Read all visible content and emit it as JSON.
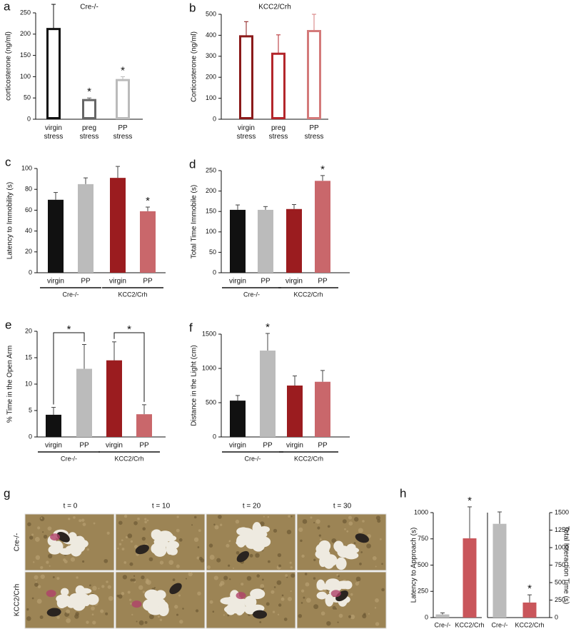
{
  "chart_data": [
    {
      "type": "bar",
      "panel": "a",
      "title": "Cre-/-",
      "ylabel": "corticosterone (ng/ml)",
      "categories": [
        "virgin stress",
        "preg stress",
        "PP stress"
      ],
      "values": [
        212,
        45,
        92
      ],
      "errors": [
        58,
        5,
        8
      ],
      "colors": [
        "#111111",
        "#666666",
        "#bbbbbb"
      ],
      "filled": false,
      "ylim": [
        0,
        250
      ],
      "yticks": [
        0,
        50,
        100,
        150,
        200,
        250
      ],
      "annotations": [
        null,
        "*",
        "*"
      ]
    },
    {
      "type": "bar",
      "panel": "b",
      "title": "KCC2/Crh",
      "ylabel": "Corticosterone (ng/ml)",
      "categories": [
        "virgin stress",
        "preg stress",
        "PP stress"
      ],
      "values": [
        395,
        312,
        420
      ],
      "errors": [
        70,
        90,
        80
      ],
      "colors": [
        "#8b1a1a",
        "#b3262b",
        "#d47a7a"
      ],
      "filled": false,
      "ylim": [
        0,
        500
      ],
      "yticks": [
        0,
        100,
        200,
        300,
        400,
        500
      ]
    },
    {
      "type": "bar",
      "panel": "c",
      "ylabel": "Latency to Immobility (s)",
      "categories": [
        "virgin",
        "PP",
        "virgin",
        "PP"
      ],
      "groups": [
        "Cre-/-",
        "KCC2/Crh"
      ],
      "values": [
        70,
        85,
        91,
        59
      ],
      "errors": [
        7,
        6,
        11,
        4
      ],
      "colors": [
        "#111111",
        "#bbbbbb",
        "#9b1c1f",
        "#c9676b"
      ],
      "filled": true,
      "ylim": [
        0,
        100
      ],
      "yticks": [
        0,
        20,
        40,
        60,
        80,
        100
      ],
      "annotations": [
        null,
        null,
        null,
        "*"
      ]
    },
    {
      "type": "bar",
      "panel": "d",
      "ylabel": "Total Time Immobile (s)",
      "categories": [
        "virgin",
        "PP",
        "virgin",
        "PP"
      ],
      "groups": [
        "Cre-/-",
        "KCC2/Crh"
      ],
      "values": [
        154,
        154,
        156,
        225
      ],
      "errors": [
        12,
        8,
        11,
        13
      ],
      "colors": [
        "#111111",
        "#bbbbbb",
        "#9b1c1f",
        "#c9676b"
      ],
      "filled": true,
      "ylim": [
        0,
        250
      ],
      "yticks": [
        0,
        50,
        100,
        150,
        200,
        250
      ],
      "annotations": [
        null,
        null,
        null,
        "*"
      ]
    },
    {
      "type": "bar",
      "panel": "e",
      "ylabel": "% Time in the Open Arm",
      "categories": [
        "virgin",
        "PP",
        "virgin",
        "PP"
      ],
      "groups": [
        "Cre-/-",
        "KCC2/Crh"
      ],
      "values": [
        4.2,
        12.9,
        14.5,
        4.3
      ],
      "errors": [
        1.4,
        4.6,
        3.5,
        1.8
      ],
      "colors": [
        "#111111",
        "#bbbbbb",
        "#9b1c1f",
        "#c9676b"
      ],
      "filled": true,
      "ylim": [
        0,
        20
      ],
      "yticks": [
        0,
        5,
        10,
        15,
        20
      ],
      "brackets": [
        "*",
        "*"
      ]
    },
    {
      "type": "bar",
      "panel": "f",
      "ylabel": "Distance in the Light (cm)",
      "categories": [
        "virgin",
        "PP",
        "virgin",
        "PP"
      ],
      "groups": [
        "Cre-/-",
        "KCC2/Crh"
      ],
      "values": [
        530,
        1260,
        750,
        805
      ],
      "errors": [
        75,
        250,
        140,
        165
      ],
      "colors": [
        "#111111",
        "#bbbbbb",
        "#9b1c1f",
        "#c9676b"
      ],
      "filled": true,
      "ylim": [
        0,
        1500
      ],
      "yticks": [
        0,
        500,
        1000,
        1500
      ],
      "annotations": [
        null,
        "*",
        null,
        null
      ]
    },
    {
      "type": "dualbar",
      "panel": "h",
      "ylabel": "Latency to Approach (s)",
      "y2label": "Total Interaction Time (s)",
      "ylim": [
        0,
        1000
      ],
      "yticks": [
        0,
        250,
        500,
        750,
        1000
      ],
      "y2lim": [
        0,
        1500
      ],
      "y2ticks": [
        0,
        250,
        500,
        750,
        1000,
        1250,
        1500
      ],
      "series": [
        {
          "categories": [
            "Cre-/-",
            "KCC2/Crh"
          ],
          "values": [
            30,
            755
          ],
          "errors": [
            15,
            300
          ],
          "colors": [
            "#bbbbbb",
            "#c9565b"
          ],
          "annotations": [
            null,
            "*"
          ]
        },
        {
          "axis": "y2",
          "categories": [
            "Cre-/-",
            "KCC2/Crh"
          ],
          "values": [
            1340,
            215
          ],
          "errors": [
            170,
            110
          ],
          "colors": [
            "#bbbbbb",
            "#c9565b"
          ],
          "annotations": [
            null,
            "*"
          ]
        }
      ]
    }
  ],
  "photo_panel": {
    "panel": "g",
    "columns": [
      "t = 0",
      "t = 10",
      "t = 20",
      "t = 30"
    ],
    "rows": [
      "Cre-/-",
      "KCC2/Crh"
    ]
  }
}
